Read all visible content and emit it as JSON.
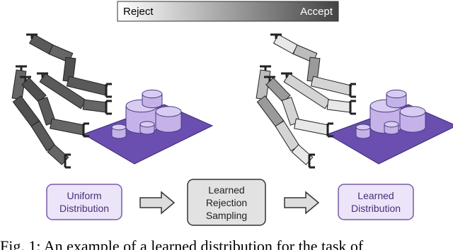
{
  "scale": {
    "left": "Reject",
    "right": "Accept"
  },
  "boxes": [
    {
      "lines": [
        "Uniform",
        "Distribution"
      ]
    },
    {
      "lines": [
        "Learned",
        "Rejection",
        "Sampling"
      ]
    },
    {
      "lines": [
        "Learned",
        "Distribution"
      ]
    }
  ],
  "caption": "Fig. 1: An example of a learned distribution for the task of"
}
